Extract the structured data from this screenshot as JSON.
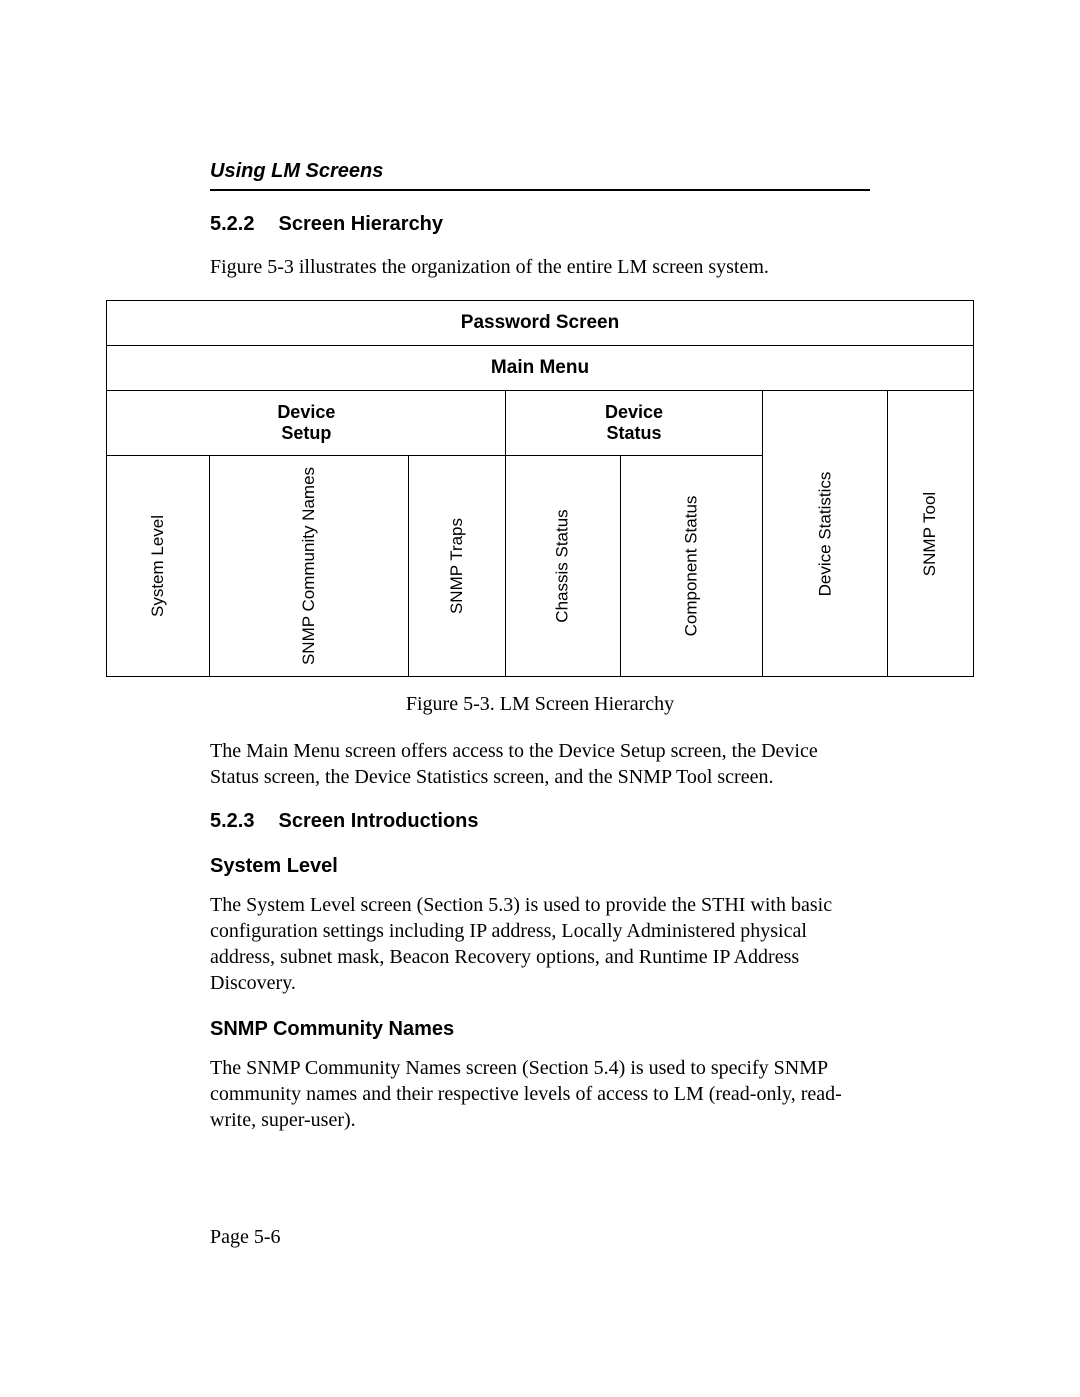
{
  "running_head": "Using LM Screens",
  "sec_522": {
    "num": "5.2.2",
    "title": "Screen Hierarchy"
  },
  "intro_522": "Figure 5-3 illustrates the organization of the entire LM screen system.",
  "hierarchy": {
    "row1": "Password Screen",
    "row2": "Main Menu",
    "device_setup": "Device\nSetup",
    "device_status": "Device\nStatus",
    "leaves": {
      "system_level": "System Level",
      "snmp_comm": "SNMP Community Names",
      "snmp_traps": "SNMP Traps",
      "chassis_status": "Chassis Status",
      "component_status": "Component Status",
      "device_stats": "Device Statistics",
      "snmp_tool": "SNMP Tool"
    }
  },
  "fig_caption": "Figure 5-3.  LM Screen Hierarchy",
  "para_after_fig": "The Main Menu screen offers access to the Device Setup screen, the Device Status screen, the Device Statistics screen, and the SNMP Tool screen.",
  "sec_523": {
    "num": "5.2.3",
    "title": "Screen Introductions"
  },
  "sys_level": {
    "heading": "System Level",
    "body": "The System Level screen (Section 5.3) is used to provide the STHI with basic configuration settings including IP address, Locally Administered physical address, subnet mask, Beacon Recovery options, and Runtime IP Address Discovery."
  },
  "snmp_comm": {
    "heading": "SNMP Community Names",
    "body": "The SNMP Community Names screen (Section 5.4) is used to specify SNMP community names and their respective levels of access to LM (read-only, read-write, super-user)."
  },
  "page_number": "Page 5-6"
}
